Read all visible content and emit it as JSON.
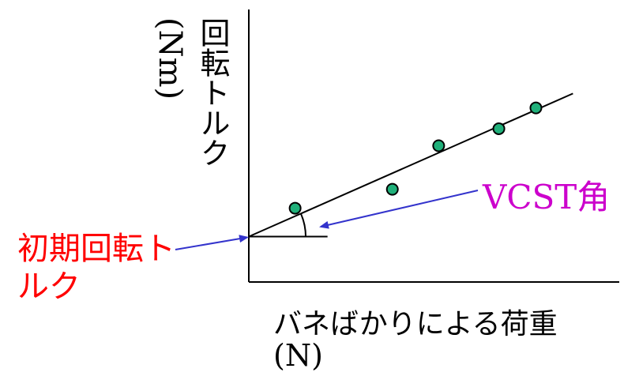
{
  "chart_data": {
    "type": "scatter",
    "ylabel": "回転トルク",
    "ylabel_unit": "(Nm)",
    "xlabel": "バネばかりによる荷重",
    "xlabel_unit": "(N)",
    "x": [
      1.0,
      3.1,
      4.1,
      5.4,
      6.2
    ],
    "y": [
      0.75,
      1.25,
      2.4,
      2.85,
      3.4
    ],
    "fit_line": {
      "intercept": 0,
      "slope": 0.54
    },
    "xlim": [
      0,
      8
    ],
    "ylim": [
      -1.2,
      6
    ],
    "annotations": {
      "initial_torque": "初期回転トルク",
      "vcst_angle": "VCST角"
    },
    "colors": {
      "marker_fill": "#20b07a",
      "axis": "#000000",
      "arrow": "#3333cc",
      "initial_torque_text": "#ff0000",
      "vcst_text": "#cc00cc"
    }
  }
}
